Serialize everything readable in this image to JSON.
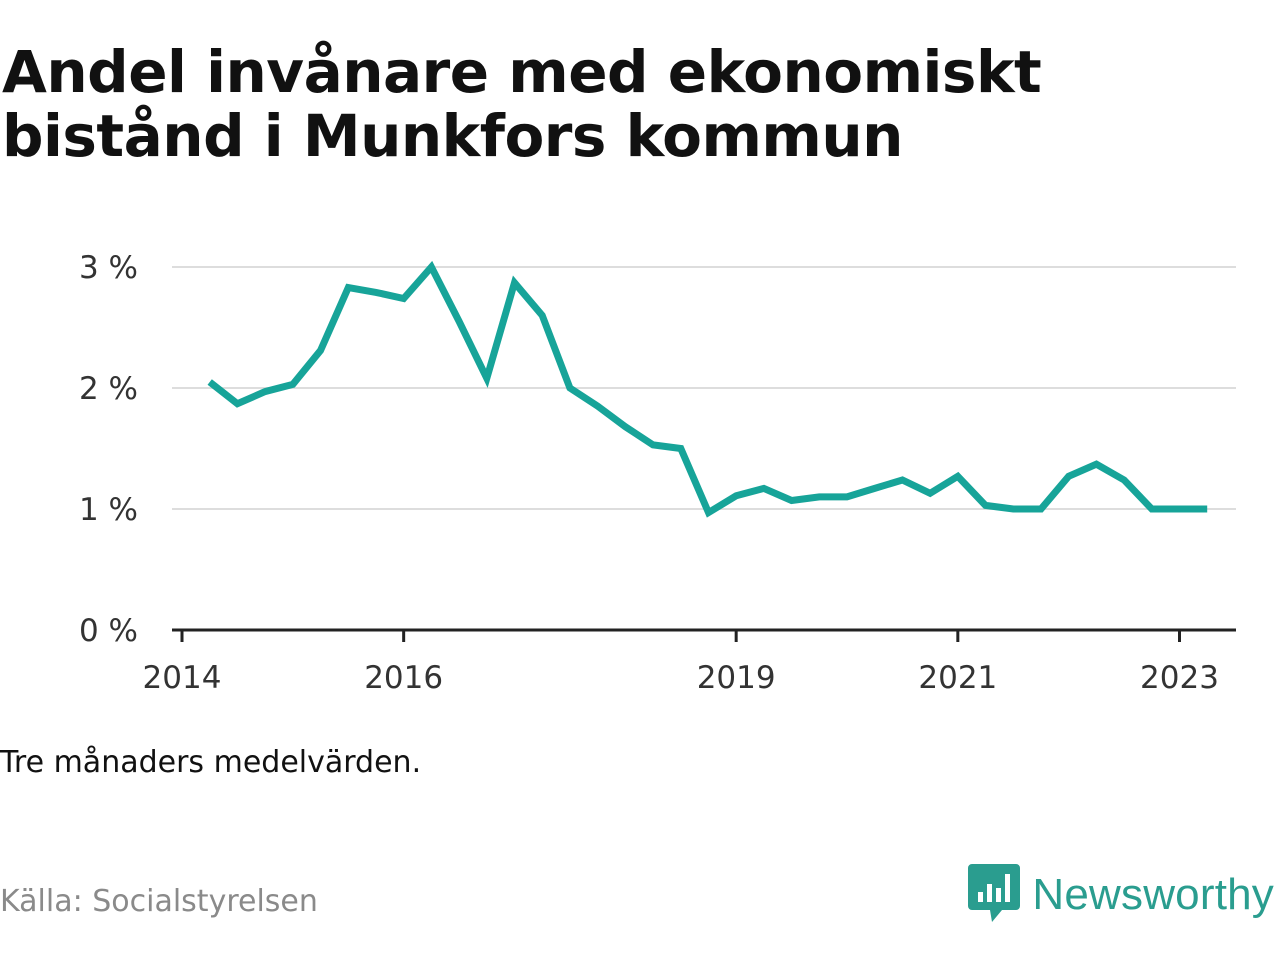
{
  "title": "Andel invånare med ekonomiskt bistånd i Munkfors kommun",
  "note": "Tre månaders medelvärden.",
  "source": "Källa: Socialstyrelsen",
  "brand": {
    "name": "Newsworthy",
    "icon": "bar-chart-speech-bubble-icon",
    "color": "#2a9d8f"
  },
  "colors": {
    "line": "#17a499",
    "grid": "#dddddd",
    "axis": "#222222",
    "text": "#333333"
  },
  "chart_data": {
    "type": "line",
    "title": "Andel invånare med ekonomiskt bistånd i Munkfors kommun",
    "xlabel": "",
    "ylabel": "",
    "x_axis": "time (quarters)",
    "xlim": [
      2014.0,
      2023.6
    ],
    "ylim": [
      0,
      3
    ],
    "y_ticks": [
      0,
      1,
      2,
      3
    ],
    "y_tick_labels": [
      "0 %",
      "1 %",
      "2 %",
      "3 %"
    ],
    "x_ticks": [
      2014,
      2016,
      2019,
      2021,
      2023
    ],
    "x_tick_labels": [
      "2014",
      "2016",
      "2019",
      "2021",
      "2023"
    ],
    "grid": true,
    "legend": "none",
    "series": [
      {
        "x": [
          2014.25,
          2014.5,
          2014.75,
          2015.0,
          2015.25,
          2015.5,
          2015.75,
          2016.0,
          2016.25,
          2016.5,
          2016.75,
          2017.0,
          2017.25,
          2017.5,
          2017.75,
          2018.0,
          2018.25,
          2018.5,
          2018.75,
          2019.0,
          2019.25,
          2019.5,
          2019.75,
          2020.0,
          2020.25,
          2020.5,
          2020.75,
          2021.0,
          2021.25,
          2021.5,
          2021.75,
          2022.0,
          2022.25,
          2022.5,
          2022.75,
          2023.0,
          2023.25
        ],
        "values": [
          2.05,
          1.87,
          1.97,
          2.03,
          2.31,
          2.83,
          2.79,
          2.74,
          3.0,
          2.55,
          2.08,
          2.87,
          2.6,
          2.0,
          1.85,
          1.68,
          1.53,
          1.5,
          0.97,
          1.11,
          1.17,
          1.07,
          1.1,
          1.1,
          1.17,
          1.24,
          1.13,
          1.27,
          1.03,
          1.0,
          1.0,
          1.27,
          1.37,
          1.24,
          1.0,
          1.0,
          1.0
        ]
      }
    ]
  }
}
